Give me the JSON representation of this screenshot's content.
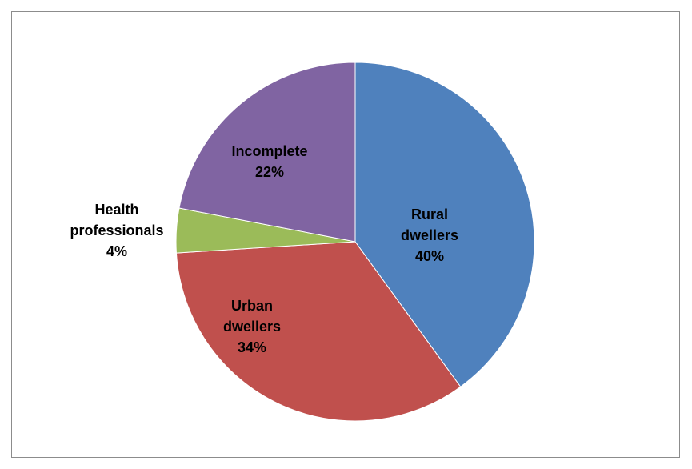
{
  "chart_data": {
    "type": "pie",
    "title": "",
    "start_angle_deg": 0,
    "direction": "clockwise",
    "legend": "none",
    "slices": [
      {
        "label_lines": [
          "Rural",
          "dwellers"
        ],
        "percent_label": "40%",
        "value": 40,
        "color": "#4F81BD"
      },
      {
        "label_lines": [
          "Urban",
          "dwellers"
        ],
        "percent_label": "34%",
        "value": 34,
        "color": "#C0504D"
      },
      {
        "label_lines": [
          "Health",
          "professionals"
        ],
        "percent_label": "4%",
        "value": 4,
        "color": "#9BBB59"
      },
      {
        "label_lines": [
          "Incomplete"
        ],
        "percent_label": "22%",
        "value": 22,
        "color": "#8064A2"
      }
    ]
  }
}
